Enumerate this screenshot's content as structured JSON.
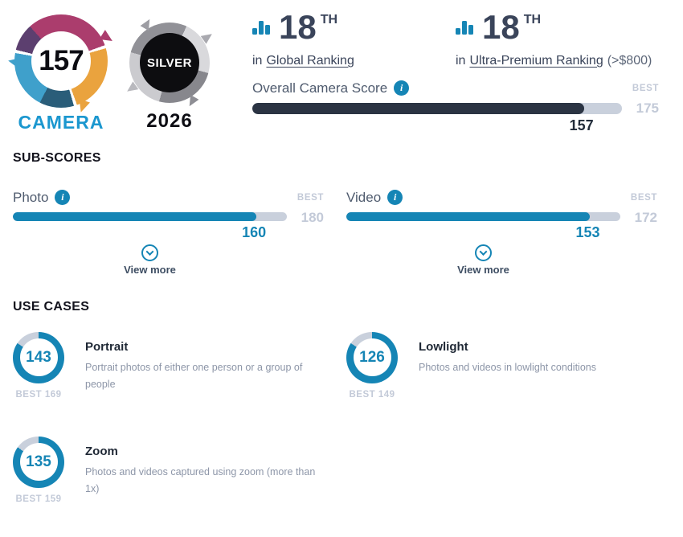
{
  "colors": {
    "accent": "#1585b5",
    "dark": "#2b3443",
    "track": "#c9d0dc",
    "muted": "#c3cad8",
    "textdark": "#3a445a",
    "heading": "#13131d",
    "label": "#4f5b6e",
    "desc": "#8d96a8",
    "cambrand": "#1b97cf",
    "magenta": "#ab3d6d",
    "orange": "#eaa33e",
    "teal": "#2a5d79",
    "lightblue": "#3fa0cb",
    "purple": "#5c3f6f"
  },
  "icons": {
    "info": "i",
    "chevron_down": "chevron-down",
    "ranking": "bar-chart"
  },
  "header": {
    "camera_badge": {
      "score": 157,
      "label": "CAMERA"
    },
    "medal_badge": {
      "tier": "SILVER",
      "year": "2026"
    },
    "rankings": [
      {
        "rank": 18,
        "suffix": "TH",
        "prefix": "in",
        "link": "Global Ranking",
        "note": ""
      },
      {
        "rank": 18,
        "suffix": "TH",
        "prefix": "in",
        "link": "Ultra-Premium Ranking",
        "note": "(>$800)"
      }
    ],
    "overall": {
      "label": "Overall Camera Score",
      "best_label": "BEST",
      "best": 175,
      "score": 157
    }
  },
  "subscores": {
    "title": "SUB-SCORES",
    "items": [
      {
        "name": "Photo",
        "score": 160,
        "best": 180,
        "best_label": "BEST",
        "view_more": "View more"
      },
      {
        "name": "Video",
        "score": 153,
        "best": 172,
        "best_label": "BEST",
        "view_more": "View more"
      }
    ]
  },
  "use_cases": {
    "title": "USE CASES",
    "items": [
      {
        "name": "Portrait",
        "score": 143,
        "best": 169,
        "best_label": "BEST",
        "description": "Portrait photos of either one person or a group of people"
      },
      {
        "name": "Lowlight",
        "score": 126,
        "best": 149,
        "best_label": "BEST",
        "description": "Photos and videos in lowlight conditions"
      },
      {
        "name": "Zoom",
        "score": 135,
        "best": 159,
        "best_label": "BEST",
        "description": "Photos and videos captured using zoom (more than 1x)"
      }
    ]
  }
}
